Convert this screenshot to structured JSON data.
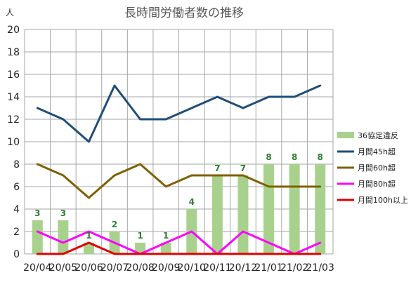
{
  "chart_data": {
    "type": "bar+line",
    "title": "長時間労働者数の推移",
    "ylabel": "人",
    "xlabel": "",
    "ylim": [
      0,
      20
    ],
    "ytick_step": 2,
    "grid": true,
    "legend_position": "right",
    "categories": [
      "20/04",
      "20/05",
      "20/06",
      "20/07",
      "20/08",
      "20/09",
      "20/10",
      "20/11",
      "20/12",
      "21/01",
      "21/02",
      "21/03"
    ],
    "bar_series": {
      "name": "36協定違反",
      "color": "#a9d18e",
      "label_color": "#2e7d32",
      "values": [
        3,
        3,
        1,
        2,
        1,
        1,
        4,
        7,
        7,
        8,
        8,
        8
      ]
    },
    "series": [
      {
        "name": "月間45h超",
        "color": "#1f4e79",
        "values": [
          13,
          12,
          10,
          15,
          12,
          12,
          13,
          14,
          13,
          14,
          14,
          15
        ]
      },
      {
        "name": "月間60h超",
        "color": "#7f6000",
        "values": [
          8,
          7,
          5,
          7,
          8,
          6,
          7,
          7,
          7,
          6,
          6,
          6
        ]
      },
      {
        "name": "月間80h超",
        "color": "#ff00ff",
        "values": [
          2,
          1,
          2,
          1,
          0,
          1,
          2,
          0,
          2,
          1,
          0,
          1
        ]
      },
      {
        "name": "月間100h以上",
        "color": "#e00000",
        "values": [
          0,
          0,
          1,
          0,
          0,
          0,
          0,
          0,
          0,
          0,
          0,
          0
        ]
      }
    ]
  }
}
